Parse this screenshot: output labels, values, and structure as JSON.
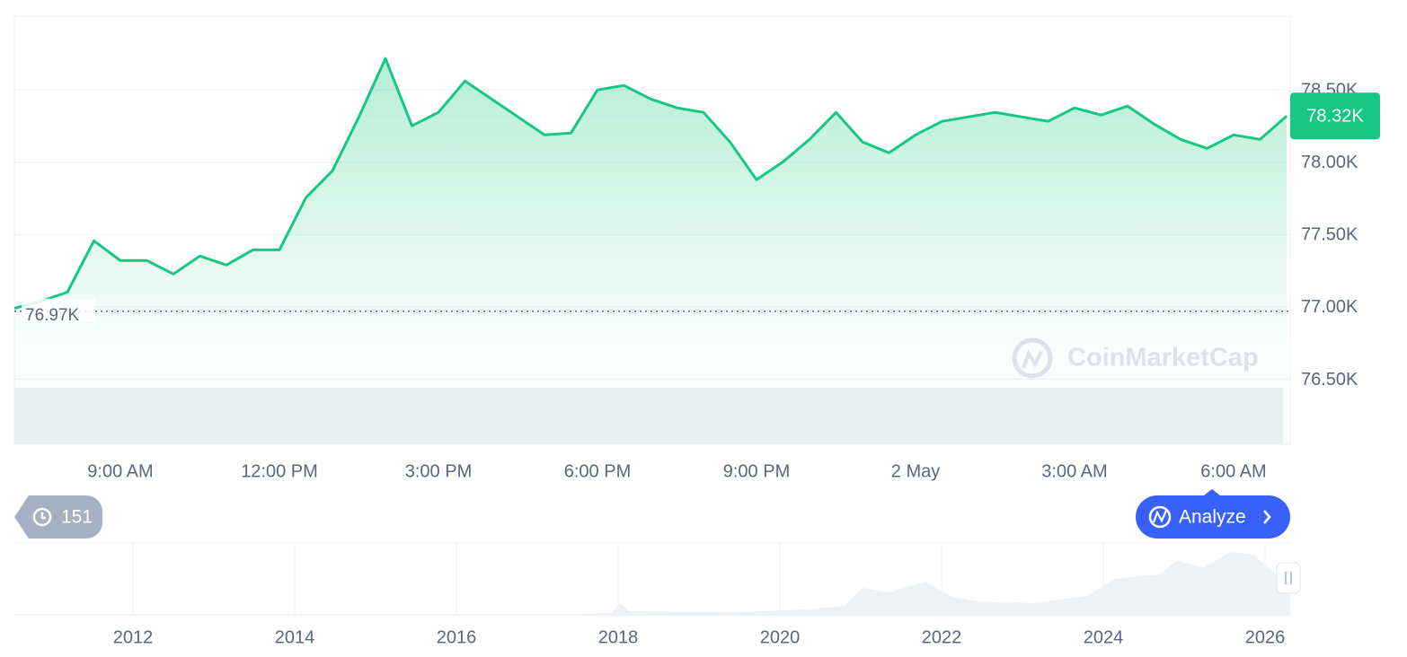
{
  "chart_data": {
    "type": "line",
    "categories": [
      null,
      null,
      null,
      null,
      "9:00 AM",
      null,
      null,
      null,
      null,
      null,
      "12:00 PM",
      null,
      null,
      null,
      null,
      null,
      "3:00 PM",
      null,
      null,
      null,
      null,
      null,
      "6:00 PM",
      null,
      null,
      null,
      null,
      null,
      "9:00 PM",
      null,
      null,
      null,
      null,
      null,
      "2 May",
      null,
      null,
      null,
      null,
      null,
      "3:00 AM",
      null,
      null,
      null,
      null,
      null,
      "6:00 AM",
      null,
      null
    ],
    "series": [
      {
        "color": "#16c784",
        "values": [
          76990,
          77040,
          77102,
          77457,
          77320,
          77320,
          77227,
          77351,
          77289,
          77394,
          77394,
          77755,
          77941,
          78314,
          78717,
          78252,
          78345,
          78562,
          78438,
          78314,
          78189,
          78202,
          78500,
          78531,
          78438,
          78376,
          78345,
          78140,
          77879,
          78003,
          78158,
          78345,
          78140,
          78065,
          78189,
          78283,
          78314,
          78345,
          78314,
          78283,
          78376,
          78326,
          78388,
          78264,
          78158,
          78096,
          78189,
          78158,
          78320
        ],
        "value_labels": [
          null,
          null,
          null,
          null,
          null,
          null,
          null,
          null,
          null,
          null,
          null,
          null,
          null,
          null,
          null,
          null,
          null,
          null,
          null,
          null,
          null,
          null,
          null,
          null,
          null,
          null,
          null,
          null,
          null,
          null,
          null,
          null,
          null,
          null,
          null,
          null,
          null,
          null,
          null,
          null,
          null,
          null,
          null,
          null,
          null,
          null,
          null,
          null,
          "78.32K"
        ]
      }
    ],
    "ylim": [
      76050,
      79010
    ],
    "yticks": [
      {
        "value": 76500,
        "label": "76.50K"
      },
      {
        "value": 77000,
        "label": "77.00K"
      },
      {
        "value": 77500,
        "label": "77.50K"
      },
      {
        "value": 78000,
        "label": "78.00K"
      },
      {
        "value": 78500,
        "label": "78.50K"
      }
    ],
    "grid": true,
    "reference_line": {
      "value": 76970,
      "label": "76.97K"
    },
    "watermark": "CoinMarketCap",
    "history_count": 151,
    "button": "Analyze",
    "navigator_years": [
      "2012",
      "2014",
      "2016",
      "2018",
      "2020",
      "2022",
      "2024",
      "2026"
    ]
  }
}
